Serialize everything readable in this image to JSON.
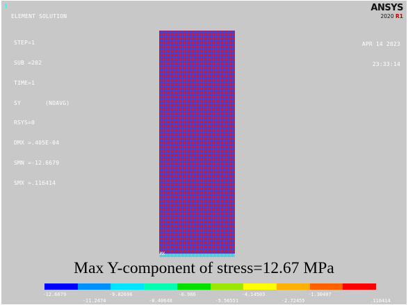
{
  "header": {
    "window_number": "1",
    "title": "ELEMENT SOLUTION",
    "info_lines": [
      "STEP=1",
      "SUB =202",
      "TIME=1",
      "SY       (NOAVG)",
      "RSYS=0",
      "DMX =.405E-04",
      "SMN =-12.6679",
      "SMX =.116414"
    ],
    "date": "APR 14 2023",
    "time": "23:33:14"
  },
  "logo": {
    "brand": "ANSYS",
    "version_year": "2020",
    "version_release": "R1"
  },
  "model": {
    "max_marker": "MX"
  },
  "caption": "Max Y-component of stress=12.67 MPa",
  "legend": {
    "colors": [
      "#0000ff",
      "#0090ff",
      "#00e5ff",
      "#00ffb0",
      "#00e000",
      "#9ae800",
      "#ffff00",
      "#ffb000",
      "#ff6000",
      "#ff0000"
    ],
    "upper_labels": [
      "-12.6679",
      "-9.82696",
      "-6.986",
      "-4.14503",
      "-1.30407"
    ],
    "lower_labels": [
      "-11.2474",
      "-8.40648",
      "-5.56551",
      "-2.72455",
      ".116414"
    ]
  }
}
